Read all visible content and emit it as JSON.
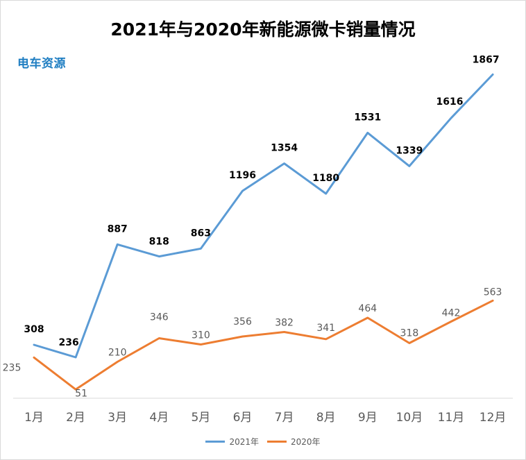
{
  "logo": {
    "text": "电车资源"
  },
  "chart_data": {
    "type": "line",
    "title": "2021年与2020年新能源微卡销量情况",
    "xlabel": "",
    "ylabel": "",
    "categories": [
      "1月",
      "2月",
      "3月",
      "4月",
      "5月",
      "6月",
      "7月",
      "8月",
      "9月",
      "10月",
      "11月",
      "12月"
    ],
    "ylim": [
      0,
      2000
    ],
    "grid": false,
    "legend_position": "bottom",
    "series": [
      {
        "name": "2021年",
        "color": "#5b9bd5",
        "values": [
          308,
          236,
          887,
          818,
          863,
          1196,
          1354,
          1180,
          1531,
          1339,
          1616,
          1867
        ]
      },
      {
        "name": "2020年",
        "color": "#ed7d31",
        "values": [
          235,
          51,
          210,
          346,
          310,
          356,
          382,
          341,
          464,
          318,
          442,
          563
        ]
      }
    ]
  }
}
